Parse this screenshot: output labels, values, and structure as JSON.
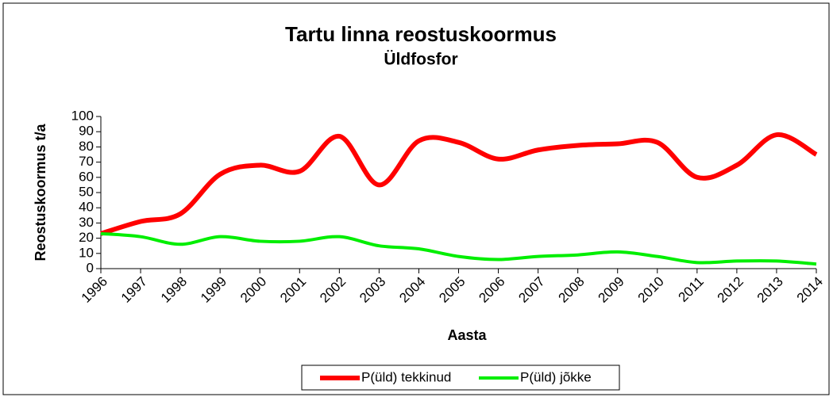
{
  "chart_data": {
    "type": "line",
    "title": "Tartu linna reostuskoormus",
    "subtitle": "Üldfosfor",
    "x_label": "Aasta",
    "y_label": "Reostuskoormus t/a",
    "categories": [
      "1996",
      "1997",
      "1998",
      "1999",
      "2000",
      "2001",
      "2002",
      "2003",
      "2004",
      "2005",
      "2006",
      "2007",
      "2008",
      "2009",
      "2010",
      "2011",
      "2012",
      "2013",
      "2014"
    ],
    "series": [
      {
        "name": "P(üld) tekkinud",
        "color": "#ff0000",
        "values": [
          23,
          31,
          36,
          62,
          68,
          64,
          87,
          55,
          84,
          83,
          72,
          78,
          81,
          82,
          83,
          60,
          68,
          88,
          75
        ]
      },
      {
        "name": "P(üld) jõkke",
        "color": "#00ee00",
        "values": [
          23,
          21,
          16,
          21,
          18,
          18,
          21,
          15,
          13,
          8,
          6,
          8,
          9,
          11,
          8,
          4,
          5,
          5,
          3
        ]
      }
    ],
    "ylim": [
      0,
      100
    ],
    "yticks": [
      0,
      10,
      20,
      30,
      40,
      50,
      60,
      70,
      80,
      90,
      100
    ],
    "smooth": true,
    "legend": "bottom"
  }
}
